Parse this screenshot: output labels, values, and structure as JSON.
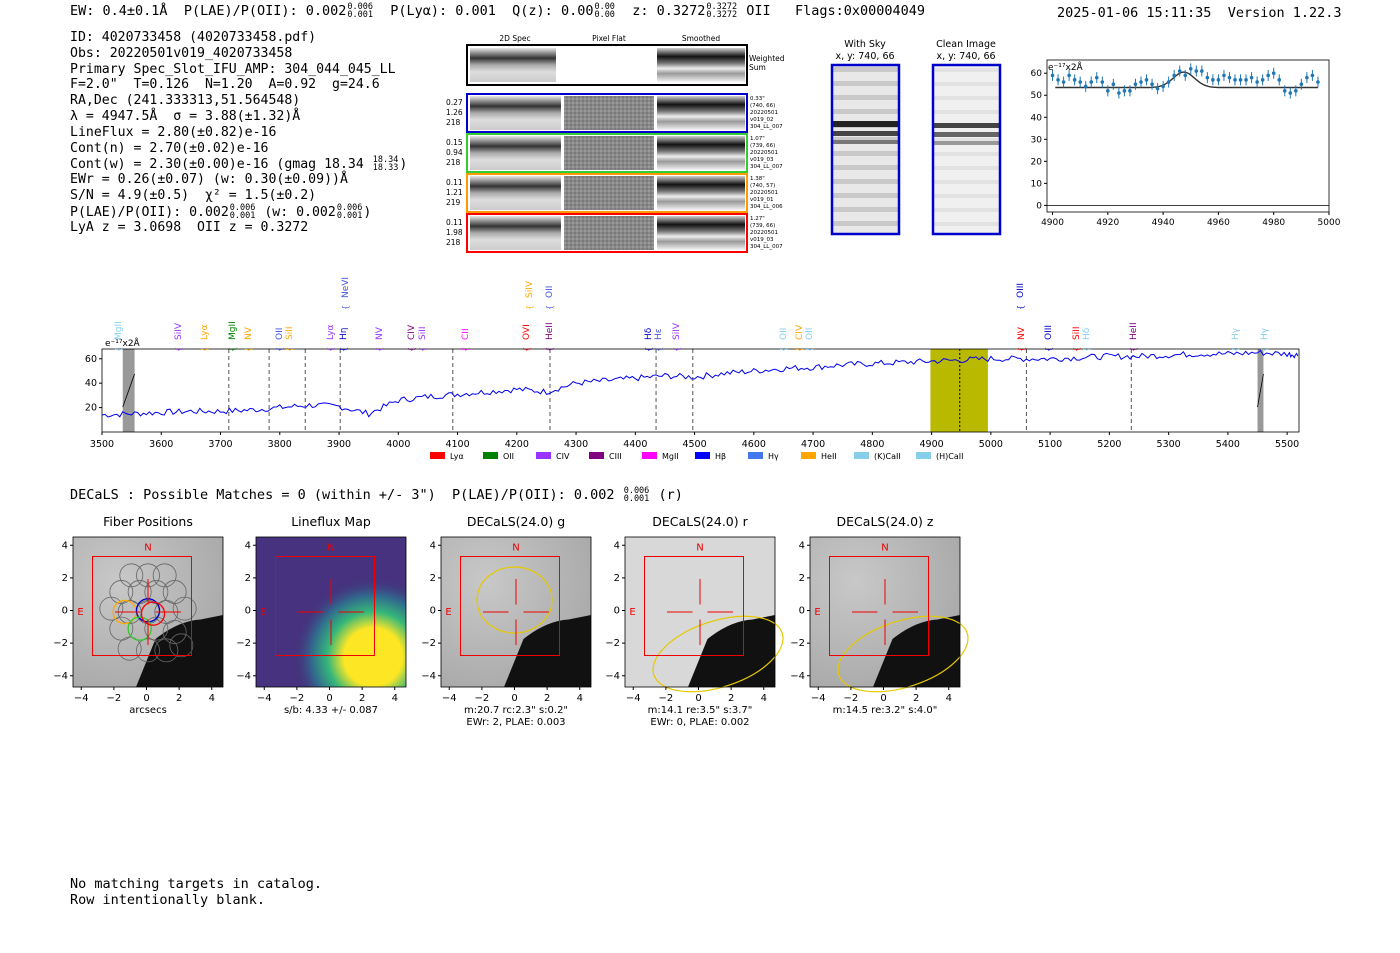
{
  "header": {
    "ew": "EW: 0.4±0.1Å",
    "plae_label": "P(LAE)/P(OII): 0.002",
    "plae_hi": "0.006",
    "plae_lo": "0.001",
    "plya": "P(Lyα): 0.001",
    "qz_label": "Q(z): 0.00",
    "qz_hi": "0.00",
    "qz_lo": "0.00",
    "z_label": "z: 0.3272",
    "z_hi": "0.3272",
    "z_lo": "0.3272",
    "z_line": "OII",
    "flags": "Flags:0x00004049",
    "timestamp": "2025-01-06 15:11:35",
    "version": "Version 1.22.3"
  },
  "info": {
    "id": "ID: 4020733458 (4020733458.pdf)",
    "obs": "Obs: 20220501v019_4020733458",
    "primary": "Primary Spec_Slot_IFU_AMP: 304_044_045_LL",
    "fwhm": "F=2.0\"  T=0.126  N=1.20  A=0.92  g=24.6",
    "radec": "RA,Dec (241.333313,51.564548)",
    "lambda": "λ = 4947.5Å  σ = 3.88(±1.32)Å",
    "lineflux": "LineFlux = 2.80(±0.82)e-16",
    "cont_n": "Cont(n) = 2.70(±0.02)e-16",
    "cont_w": "Cont(w) = 2.30(±0.00)e-16 (gmag 18.34",
    "cont_w_hi": "18.34",
    "cont_w_lo": "18.33",
    "ewr": "EWr = 0.26(±0.07) (w: 0.30(±0.09))Å",
    "sn": "S/N = 4.9(±0.5)  χ² = 1.5(±0.2)",
    "plae": "P(LAE)/P(OII): 0.002",
    "plae_hi": "0.006",
    "plae_lo": "0.001",
    "plae_w": "(w: 0.002",
    "plae_w_hi": "0.006",
    "plae_w_lo": "0.001",
    "lyaz": "LyA z = 3.0698  OII z = 0.3272"
  },
  "cutouts": {
    "columns": [
      "2D Spec",
      "Pixel Flat",
      "Smoothed"
    ],
    "weighted_sum": [
      "Weighted",
      "Sum"
    ],
    "rows": [
      {
        "left": [
          "0.27",
          "1.26",
          "218"
        ],
        "right": [
          "0.33\"",
          "(740, 66)",
          "20220501",
          "v019_02",
          "304_LL_007"
        ],
        "color": "#0000cc"
      },
      {
        "left": [
          "0.15",
          "0.94",
          "218"
        ],
        "right": [
          "1.07\"",
          "(739, 66)",
          "20220501",
          "v019_03",
          "304_LL_007"
        ],
        "color": "#33cc33"
      },
      {
        "left": [
          "0.11",
          "1.21",
          "219"
        ],
        "right": [
          "1.38\"",
          "(740, 57)",
          "20220501",
          "v019_01",
          "304_LL_006"
        ],
        "color": "#ff9900"
      },
      {
        "left": [
          "0.11",
          "1.98",
          "218"
        ],
        "right": [
          "1.27\"",
          "(739, 66)",
          "20220501",
          "v019_03",
          "304_LL_007"
        ],
        "color": "#ff0000"
      }
    ]
  },
  "sky": {
    "with_sky_title": "With Sky",
    "with_sky_xy": "x, y: 740, 66",
    "clean_title": "Clean Image",
    "clean_xy": "x, y: 740, 66"
  },
  "zoom_chart": {
    "unit": "e⁻¹⁷x2Å",
    "xticks": [
      "4900",
      "4920",
      "4940",
      "4960",
      "4980",
      "5000"
    ],
    "yticks": [
      "0",
      "10",
      "20",
      "30",
      "40",
      "50",
      "60"
    ]
  },
  "spectrum": {
    "unit": "e⁻¹⁷x2Å",
    "xticks": [
      "3500",
      "3600",
      "3700",
      "3800",
      "3900",
      "4000",
      "4100",
      "4200",
      "4300",
      "4400",
      "4500",
      "4600",
      "4700",
      "4800",
      "4900",
      "5000",
      "5100",
      "5200",
      "5300",
      "5400",
      "5500"
    ],
    "yticks": [
      "20",
      "40",
      "60"
    ],
    "legend": [
      {
        "label": "Lyα",
        "color": "#ff0000"
      },
      {
        "label": "OII",
        "color": "#008000"
      },
      {
        "label": "CIV",
        "color": "#9933ff"
      },
      {
        "label": "CIII",
        "color": "#800080"
      },
      {
        "label": "MgII",
        "color": "#ff00ff"
      },
      {
        "label": "Hβ",
        "color": "#0000ff"
      },
      {
        "label": "Hγ",
        "color": "#4477ee"
      },
      {
        "label": "HeII",
        "color": "#ffa500"
      },
      {
        "label": "(K)CaII",
        "color": "#87ceeb"
      },
      {
        "label": "(H)CaII",
        "color": "#87ceeb"
      }
    ],
    "lines_upper": [
      {
        "label": "NeVI",
        "color": "#4455dd",
        "x": 345
      },
      {
        "label": "SiIV",
        "color": "#ffa500",
        "x": 529
      },
      {
        "label": "OII",
        "color": "#4455dd",
        "x": 549
      },
      {
        "label": "OIII",
        "color": "#0000cc",
        "x": 1020
      }
    ],
    "lines_lower": [
      {
        "label": "MgII",
        "color": "#87ceeb",
        "x": 118
      },
      {
        "label": "SiIV",
        "color": "#9933ff",
        "x": 178
      },
      {
        "label": "Lyα",
        "color": "#ffa500",
        "x": 204
      },
      {
        "label": "MgII",
        "color": "#008000",
        "x": 232
      },
      {
        "label": "NV",
        "color": "#ffa500",
        "x": 248
      },
      {
        "label": "OII",
        "color": "#4455dd",
        "x": 279
      },
      {
        "label": "SiII",
        "color": "#ffa500",
        "x": 289
      },
      {
        "label": "Lyα",
        "color": "#9933ff",
        "x": 330
      },
      {
        "label": "Hη",
        "color": "#0000cc",
        "x": 343
      },
      {
        "label": "NV",
        "color": "#9933ff",
        "x": 379
      },
      {
        "label": "CIV",
        "color": "#800080",
        "x": 411
      },
      {
        "label": "SiII",
        "color": "#9933ff",
        "x": 422
      },
      {
        "label": "CII",
        "color": "#ff00ff",
        "x": 465
      },
      {
        "label": "OVI",
        "color": "#ff0000",
        "x": 526
      },
      {
        "label": "HeII",
        "color": "#800080",
        "x": 549
      },
      {
        "label": "Hδ",
        "color": "#0000cc",
        "x": 648
      },
      {
        "label": "Hε",
        "color": "#4455dd",
        "x": 658
      },
      {
        "label": "SiIV",
        "color": "#9933ff",
        "x": 676
      },
      {
        "label": "OII",
        "color": "#87ceeb",
        "x": 783
      },
      {
        "label": "CIV",
        "color": "#ffa500",
        "x": 799
      },
      {
        "label": "OII",
        "color": "#87ceeb",
        "x": 809
      },
      {
        "label": "NV",
        "color": "#ff0000",
        "x": 1021
      },
      {
        "label": "OIII",
        "color": "#0000cc",
        "x": 1048
      },
      {
        "label": "SiII",
        "color": "#ff0000",
        "x": 1076
      },
      {
        "label": "Hδ",
        "color": "#87ceeb",
        "x": 1086
      },
      {
        "label": "HeII",
        "color": "#800080",
        "x": 1133
      },
      {
        "label": "Hγ",
        "color": "#87ceeb",
        "x": 1235
      },
      {
        "label": "Hγ",
        "color": "#87ceeb",
        "x": 1264
      }
    ]
  },
  "decals": {
    "line": "DECaLS : Possible Matches = 0 (within +/- 3\")  P(LAE)/P(OII): 0.002",
    "line_hi": "0.006",
    "line_lo": "0.001",
    "line_tail": "(r)",
    "panels": [
      {
        "title": "Fiber Positions",
        "caption1": "arcsecs",
        "caption2": ""
      },
      {
        "title": "Lineflux Map",
        "caption1": "s/b: 4.33 +/- 0.087",
        "caption2": ""
      },
      {
        "title": "DECaLS(24.0) g",
        "caption1": "m:20.7 rc:2.3\"  s:0.2\"",
        "caption2": "EWr: 2, PLAE: 0.003"
      },
      {
        "title": "DECaLS(24.0) r",
        "caption1": "m:14.1  re:3.5\"  s:3.7\"",
        "caption2": "EWr: 0, PLAE: 0.002"
      },
      {
        "title": "DECaLS(24.0) z",
        "caption1": "m:14.5  re:3.2\"  s:4.0\"",
        "caption2": ""
      }
    ],
    "ticks": [
      "−4",
      "−2",
      "0",
      "2",
      "4"
    ],
    "n_label": "N",
    "e_label": "E"
  },
  "footer": {
    "line1": "No matching targets in catalog.",
    "line2": "Row intentionally blank."
  },
  "chart_data": [
    {
      "type": "scatter",
      "xlabel": "",
      "ylabel": "e⁻¹⁷x2Å",
      "xlim": [
        4898,
        5000
      ],
      "ylim": [
        -3,
        66
      ],
      "x": [
        4900,
        4902,
        4904,
        4906,
        4908,
        4910,
        4912,
        4914,
        4916,
        4918,
        4920,
        4922,
        4924,
        4926,
        4928,
        4930,
        4932,
        4934,
        4936,
        4938,
        4940,
        4942,
        4944,
        4946,
        4948,
        4950,
        4952,
        4954,
        4956,
        4958,
        4960,
        4962,
        4964,
        4966,
        4968,
        4970,
        4972,
        4974,
        4976,
        4978,
        4980,
        4982,
        4984,
        4986,
        4988,
        4990,
        4992,
        4994,
        4996
      ],
      "y": [
        59,
        57,
        56,
        59,
        57,
        56,
        54,
        56,
        58,
        56,
        52,
        55,
        51,
        52,
        52,
        55,
        56,
        57,
        55,
        53,
        54,
        56,
        59,
        61,
        59,
        62,
        61,
        61,
        58,
        57,
        57,
        59,
        58,
        57,
        57,
        57,
        58,
        56,
        57,
        59,
        60,
        57,
        52,
        51,
        52,
        55,
        58,
        59,
        56
      ],
      "fit": {
        "type": "gaussian",
        "continuum": 53.5,
        "center": 4947.5,
        "sigma": 3.88,
        "amp": 7
      }
    },
    {
      "type": "line",
      "xlabel": "",
      "ylabel": "e⁻¹⁷x2Å",
      "xlim": [
        3500,
        5520
      ],
      "ylim": [
        0,
        68
      ],
      "shaded": [
        [
          3535,
          3555
        ],
        [
          4898,
          4995
        ],
        [
          5450,
          5460
        ]
      ],
      "vlines": [
        3714,
        3782,
        3843,
        3902,
        4092,
        4256,
        4435,
        4497,
        4947.5,
        5060,
        5237
      ],
      "x": [
        3500,
        3550,
        3600,
        3650,
        3700,
        3750,
        3800,
        3850,
        3900,
        3950,
        4000,
        4050,
        4100,
        4150,
        4200,
        4250,
        4300,
        4350,
        4400,
        4450,
        4500,
        4550,
        4600,
        4650,
        4700,
        4750,
        4800,
        4850,
        4900,
        4950,
        5000,
        5050,
        5100,
        5150,
        5200,
        5250,
        5300,
        5350,
        5400,
        5450,
        5500,
        5520
      ],
      "y": [
        14,
        15,
        16,
        17,
        17,
        18,
        20,
        22,
        21,
        15,
        26,
        29,
        31,
        33,
        35,
        33,
        40,
        42,
        44,
        46,
        45,
        48,
        50,
        52,
        53,
        55,
        56,
        57,
        58,
        59,
        60,
        60,
        60,
        61,
        62,
        62,
        63,
        64,
        64,
        65,
        64,
        63
      ]
    }
  ]
}
